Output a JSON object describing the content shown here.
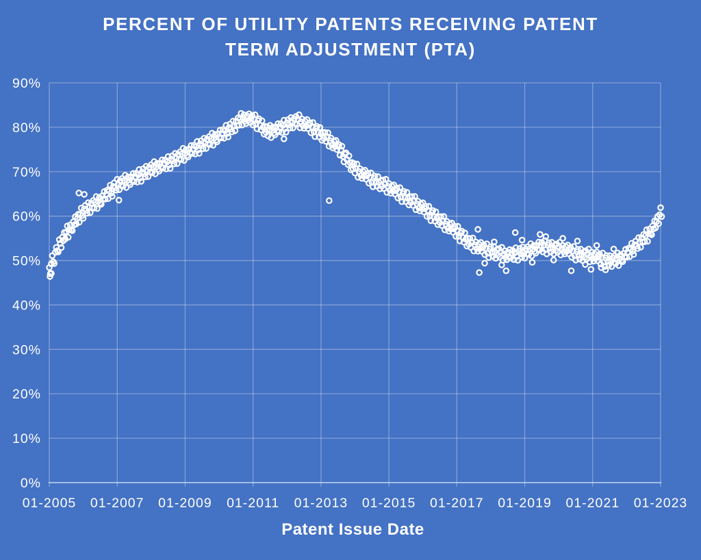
{
  "chart_data": {
    "type": "scatter",
    "title": "PERCENT OF UTILITY PATENTS RECEIVING PATENT TERM ADJUSTMENT (PTA)",
    "title_lines": [
      "PERCENT OF UTILITY PATENTS RECEIVING PATENT",
      "TERM ADJUSTMENT (PTA)"
    ],
    "xlabel": "Patent Issue Date",
    "ylabel": "",
    "series_name": "Percent of utility patents receiving PTA",
    "x_domain": [
      2005,
      2023
    ],
    "y_domain": [
      0,
      90
    ],
    "x_tick_years": [
      2005,
      2007,
      2009,
      2011,
      2013,
      2015,
      2017,
      2019,
      2021,
      2023
    ],
    "x_tick_labels": [
      "01-2005",
      "01-2007",
      "01-2009",
      "01-2011",
      "01-2013",
      "01-2015",
      "01-2017",
      "01-2019",
      "01-2021",
      "01-2023"
    ],
    "y_tick_values": [
      0,
      10,
      20,
      30,
      40,
      50,
      60,
      70,
      80,
      90
    ],
    "y_tick_labels": [
      "0%",
      "10%",
      "20%",
      "30%",
      "40%",
      "50%",
      "60%",
      "70%",
      "80%",
      "90%"
    ],
    "grid": true,
    "legend": null,
    "colors": {
      "background": "#4472C4",
      "grid": "rgba(255,255,255,0.33)",
      "axis": "rgba(255,255,255,0.6)",
      "text": "#FFFFFF",
      "marker": "#FFFFFF"
    },
    "marker": {
      "shape": "open-circle",
      "radius": 3.7,
      "stroke_width": 2.2
    },
    "trend_anchors": [
      [
        2005.0,
        47.5
      ],
      [
        2005.1,
        50.0
      ],
      [
        2005.3,
        53.5
      ],
      [
        2005.5,
        56.0
      ],
      [
        2005.75,
        58.5
      ],
      [
        2006.0,
        61.0
      ],
      [
        2006.5,
        63.5
      ],
      [
        2007.0,
        67.0
      ],
      [
        2007.5,
        68.5
      ],
      [
        2008.0,
        70.5
      ],
      [
        2008.5,
        72.0
      ],
      [
        2009.0,
        74.0
      ],
      [
        2009.5,
        76.0
      ],
      [
        2010.0,
        78.0
      ],
      [
        2010.4,
        80.0
      ],
      [
        2010.7,
        82.0
      ],
      [
        2011.0,
        81.7
      ],
      [
        2011.15,
        81.0
      ],
      [
        2011.45,
        78.8
      ],
      [
        2011.7,
        79.5
      ],
      [
        2012.0,
        80.5
      ],
      [
        2012.3,
        81.5
      ],
      [
        2012.6,
        80.5
      ],
      [
        2013.0,
        78.5
      ],
      [
        2013.5,
        75.5
      ],
      [
        2014.0,
        70.5
      ],
      [
        2014.5,
        68.2
      ],
      [
        2015.0,
        66.5
      ],
      [
        2015.5,
        64.2
      ],
      [
        2016.0,
        61.8
      ],
      [
        2016.5,
        59.0
      ],
      [
        2017.0,
        56.5
      ],
      [
        2017.4,
        53.8
      ],
      [
        2018.0,
        52.0
      ],
      [
        2018.5,
        51.2
      ],
      [
        2019.0,
        51.8
      ],
      [
        2019.5,
        53.2
      ],
      [
        2019.8,
        52.8
      ],
      [
        2020.2,
        52.5
      ],
      [
        2020.6,
        51.3
      ],
      [
        2021.0,
        51.0
      ],
      [
        2021.5,
        49.8
      ],
      [
        2021.8,
        50.3
      ],
      [
        2022.0,
        51.5
      ],
      [
        2022.3,
        53.5
      ],
      [
        2022.6,
        55.5
      ],
      [
        2022.85,
        58.0
      ],
      [
        2023.0,
        60.5
      ]
    ],
    "scatter_sampling": {
      "points_per_year": 34,
      "jitter_scale": 1.0,
      "jitter_cycle": [
        0.9,
        -1.2,
        0.3,
        1.4,
        -0.6,
        -1.5,
        0.5,
        1.1,
        -0.15,
        -0.95,
        1.3,
        0.05,
        -1.25,
        0.7,
        -0.45,
        1.05,
        -0.8,
        0.4,
        1.5,
        -1.35,
        0.1,
        0.85,
        -0.55,
        -1.05,
        0.65,
        -0.3,
        1.2,
        -0.7,
        0.2
      ]
    },
    "extra_points": [
      [
        2005.02,
        46.4
      ],
      [
        2005.06,
        47.1
      ],
      [
        2005.87,
        65.2
      ],
      [
        2006.03,
        64.9
      ],
      [
        2007.05,
        63.6
      ],
      [
        2011.91,
        77.4
      ],
      [
        2013.24,
        63.5
      ],
      [
        2017.62,
        57.0
      ],
      [
        2017.66,
        47.3
      ],
      [
        2017.82,
        49.4
      ],
      [
        2018.1,
        54.2
      ],
      [
        2018.32,
        49.0
      ],
      [
        2018.45,
        47.7
      ],
      [
        2018.72,
        56.3
      ],
      [
        2018.92,
        54.6
      ],
      [
        2019.22,
        49.6
      ],
      [
        2019.45,
        55.9
      ],
      [
        2019.62,
        55.4
      ],
      [
        2019.85,
        50.1
      ],
      [
        2020.12,
        55.0
      ],
      [
        2020.37,
        47.7
      ],
      [
        2020.55,
        54.4
      ],
      [
        2020.78,
        49.1
      ],
      [
        2020.95,
        48.0
      ],
      [
        2021.12,
        53.4
      ],
      [
        2021.25,
        48.4
      ],
      [
        2021.38,
        47.9
      ],
      [
        2021.62,
        52.6
      ]
    ]
  }
}
